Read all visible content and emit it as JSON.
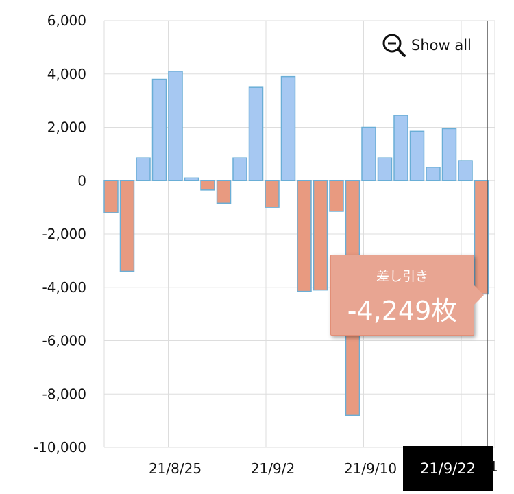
{
  "chart_data": {
    "type": "bar",
    "title": "",
    "xlabel": "",
    "ylabel": "",
    "ylim": [
      -10000,
      6000
    ],
    "y_ticks": [
      6000,
      4000,
      2000,
      0,
      -2000,
      -4000,
      -6000,
      -8000,
      -10000
    ],
    "y_tick_labels": [
      "6,000",
      "4,000",
      "2,000",
      "0",
      "-2,000",
      "-4,000",
      "-6,000",
      "-8,000",
      "-10,000"
    ],
    "x_tick_labels": [
      "21/8/25",
      "21/9/2",
      "21/9/10"
    ],
    "grid": true,
    "positive_color": "#a6c8f2",
    "negative_color": "#e89a80",
    "bar_border_color": "#6aaed6",
    "values": [
      -1200,
      -3400,
      850,
      3800,
      4100,
      100,
      -350,
      -850,
      850,
      3500,
      -1000,
      3900,
      -4150,
      -4100,
      -1150,
      -8800,
      2000,
      850,
      2450,
      1850,
      500,
      1950,
      750,
      -4249
    ]
  },
  "zoom": {
    "label": "Show all",
    "icon": "zoom-out-icon"
  },
  "tooltip": {
    "label": "差し引き",
    "value": "-4,249枚",
    "color": "#e8a592"
  },
  "crosshair": {
    "date_label": "21/9/22",
    "clipped_tick": "1"
  }
}
